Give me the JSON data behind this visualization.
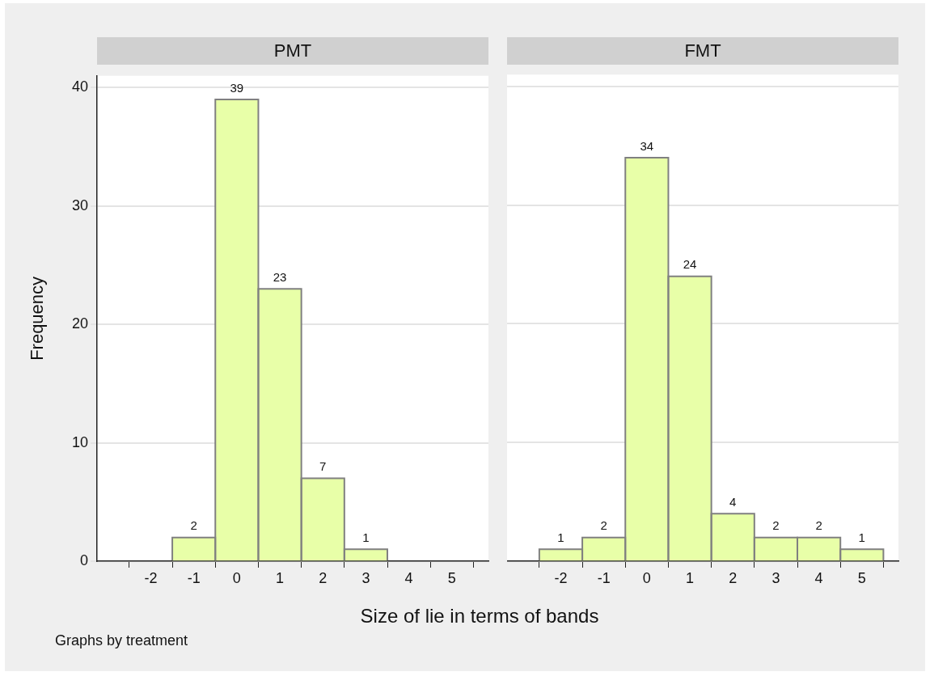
{
  "chart_data": [
    {
      "type": "histogram",
      "title": "PMT",
      "ylabel": "Frequency",
      "xlabel": "Size of lie in terms of bands",
      "annotations": [
        "Graphs by treatment"
      ],
      "bins": [
        -1.5,
        -0.5,
        0.5,
        1.5,
        2.5,
        3.5
      ],
      "values": [
        2,
        39,
        23,
        7,
        1
      ],
      "color": "#e8ffa8",
      "xlim": [
        -3.25,
        5.85
      ],
      "xticks": [
        -2,
        -1,
        0,
        1,
        2,
        3,
        4,
        5
      ],
      "ylim": [
        0,
        41
      ],
      "yticks": [
        0,
        10,
        20,
        30,
        40
      ],
      "grid": "y",
      "data_labels": true
    },
    {
      "type": "histogram",
      "title": "FMT",
      "bins": [
        -2.5,
        -1.5,
        -0.5,
        0.5,
        1.5,
        2.5,
        3.5,
        4.5,
        5.5
      ],
      "values": [
        1,
        2,
        34,
        24,
        4,
        2,
        2,
        1
      ],
      "color": "#e8ffa8",
      "xlim": [
        -3.25,
        5.85
      ],
      "xticks": [
        -2,
        -1,
        0,
        1,
        2,
        3,
        4,
        5
      ],
      "ylim": [
        0,
        41
      ],
      "yticks": [
        0,
        10,
        20,
        30,
        40
      ],
      "grid": "y",
      "data_labels": true,
      "tick_labels": "x"
    }
  ]
}
